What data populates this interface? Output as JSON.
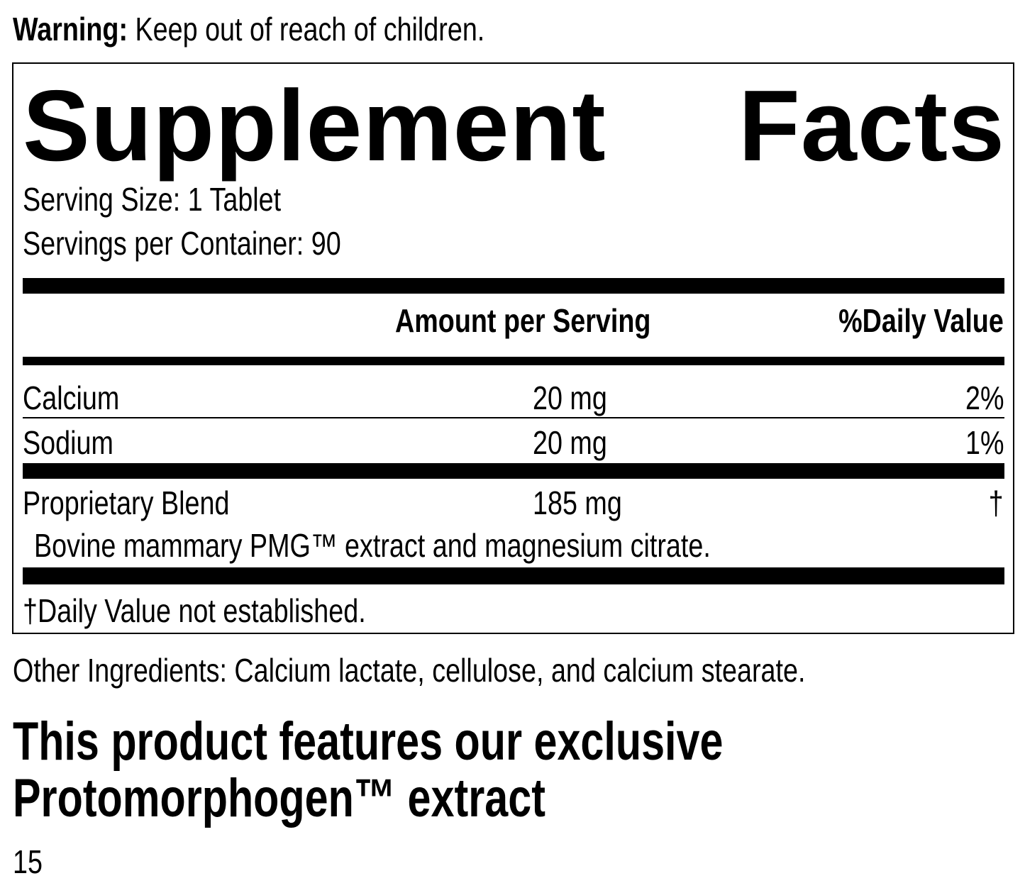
{
  "warning": {
    "label": "Warning:",
    "text": " Keep out of reach of children."
  },
  "title": [
    "Supplement",
    "Facts"
  ],
  "serving_size": "Serving Size: 1 Tablet",
  "servings_per_container": "Servings per Container: 90",
  "headers": {
    "amount": "Amount per Serving",
    "dv": "%Daily Value"
  },
  "rows": [
    {
      "name": "Calcium",
      "amount": "20 mg",
      "dv": "2%"
    },
    {
      "name": "Sodium",
      "amount": "20 mg",
      "dv": "1%"
    },
    {
      "name": "Proprietary Blend",
      "amount": "185 mg",
      "dv": "†"
    }
  ],
  "blend_ingredients": "Bovine mammary PMG™ extract and magnesium citrate.",
  "footnote": "†Daily Value not established.",
  "other_ingredients": "Other Ingredients: Calcium lactate, cellulose, and calcium stearate.",
  "feature_line1": "This product features our exclusive",
  "feature_line2": "Protomorphogen™ extract",
  "page_number": "15"
}
